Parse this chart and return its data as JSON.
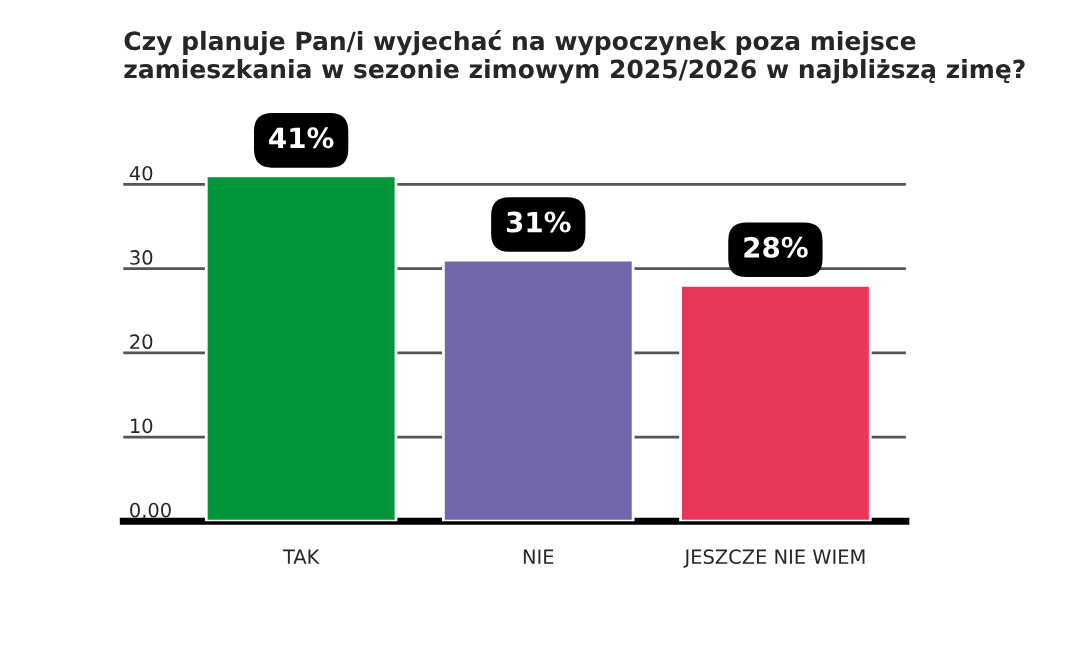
{
  "chart_data": {
    "type": "bar",
    "title": "Czy planuje Pan/i wyjechać na wypoczynek poza miejsce zamieszkania w sezonie zimowym 2025/2026 w najbliższą zimę?",
    "categories": [
      "TAK",
      "NIE",
      "JESZCZE NIE WIEM"
    ],
    "values": [
      41,
      31,
      28
    ],
    "colors": [
      "#009639",
      "#7466aa",
      "#e8375a"
    ],
    "value_labels": [
      "41%",
      "31%",
      "28%"
    ],
    "ylim": [
      0,
      41
    ],
    "yticks": [
      {
        "value": 0,
        "label": "0,00"
      },
      10,
      20,
      30,
      40
    ],
    "grid": "y"
  }
}
